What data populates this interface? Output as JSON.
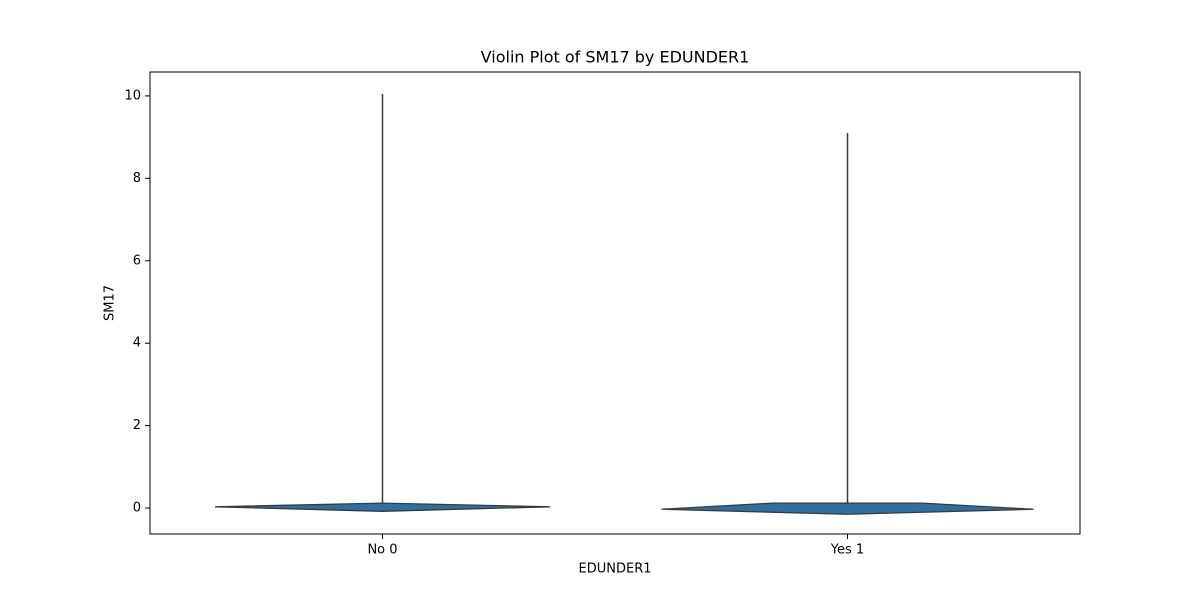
{
  "chart_data": {
    "type": "violin",
    "title": "Violin Plot of SM17 by EDUNDER1",
    "x_label": "EDUNDER1",
    "y_label": "SM17",
    "categories": [
      "No 0",
      "Yes 1"
    ],
    "groups": [
      {
        "min": -0.05,
        "max": 10.05,
        "kde_y": [
          -0.08,
          0.03,
          0.12
        ],
        "density": [
          0,
          0.9,
          0
        ]
      },
      {
        "min": -0.05,
        "max": 9.1,
        "kde_y": [
          -0.15,
          -0.03,
          0.12,
          0.17,
          0.12
        ],
        "density": [
          0,
          1.0,
          0.4,
          0,
          0
        ]
      }
    ],
    "color": "#2d6fa3",
    "edge_color": "#3a3a3a",
    "ylim": [
      -0.63,
      10.58
    ],
    "yticks": [
      0,
      2,
      4,
      6,
      8,
      10
    ]
  }
}
